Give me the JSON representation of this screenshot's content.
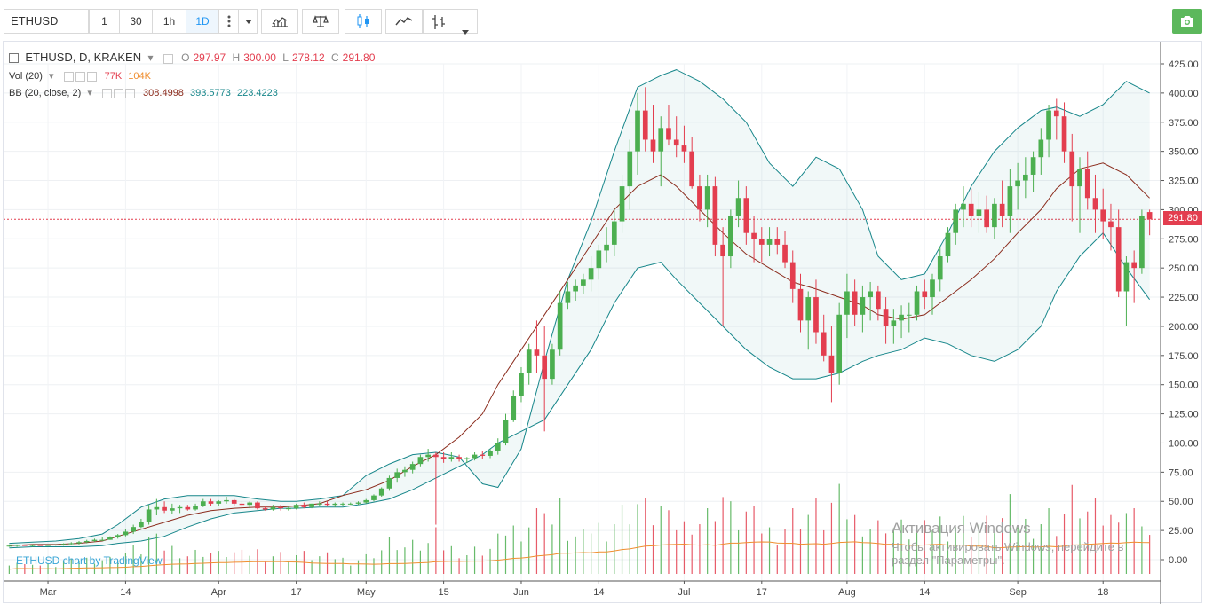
{
  "toolbar": {
    "symbol": "ETHUSD",
    "timeframes": [
      {
        "label": "1",
        "active": false
      },
      {
        "label": "30",
        "active": false
      },
      {
        "label": "1h",
        "active": false
      },
      {
        "label": "1D",
        "active": true
      }
    ],
    "icons": [
      "more-vertical-icon",
      "dropdown-icon",
      "indicators-icon",
      "compare-icon",
      "candles-icon",
      "line-chart-icon",
      "bar-style-icon",
      "dropdown-icon",
      "camera-icon"
    ]
  },
  "legend": {
    "title": "ETHUSD, D, KRAKEN",
    "o_label": "O",
    "o_value": "297.97",
    "h_label": "H",
    "h_value": "300.00",
    "l_label": "L",
    "l_value": "278.12",
    "c_label": "C",
    "c_value": "291.80",
    "vol_label": "Vol (20)",
    "vol_value1": "77K",
    "vol_value2": "104K",
    "bb_label": "BB (20, close, 2)",
    "bb_mid": "308.4998",
    "bb_upper": "393.5773",
    "bb_lower": "223.4223"
  },
  "watermark": "ETHUSD chart by TradingView",
  "windows_watermark": {
    "line1": "Активация Windows",
    "line2": "Чтобы активировать Windows, перейдите в",
    "line3": "раздел \"Параметры\"."
  },
  "current_price_tag": "291.80",
  "colors": {
    "up": "#4caf50",
    "down": "#e33e4f",
    "bb_band": "#16868a",
    "bb_mid": "#8b2c1d",
    "vol_ma": "#ef8e2f"
  },
  "chart_data": {
    "type": "candlestick",
    "y_axis_labels": [
      "425.00",
      "400.00",
      "375.00",
      "350.00",
      "325.00",
      "300.00",
      "275.00",
      "250.00",
      "225.00",
      "200.00",
      "175.00",
      "150.00",
      "125.00",
      "100.00",
      "75.00",
      "50.00",
      "25.00",
      "0.00"
    ],
    "ylim": [
      0,
      425
    ],
    "x_axis_labels": [
      "Mar",
      "14",
      "Apr",
      "17",
      "May",
      "15",
      "Jun",
      "14",
      "Jul",
      "17",
      "Aug",
      "14",
      "Sep",
      "18"
    ],
    "candles": [
      [
        12,
        13,
        11,
        12
      ],
      [
        12,
        13,
        11,
        12.5
      ],
      [
        12.5,
        13,
        12,
        12
      ],
      [
        12,
        13,
        11,
        12.5
      ],
      [
        12.5,
        13,
        12,
        12
      ],
      [
        12,
        13,
        12,
        12.5
      ],
      [
        12.5,
        13,
        12,
        13
      ],
      [
        13,
        14,
        12,
        13.5
      ],
      [
        13.5,
        15,
        13,
        14
      ],
      [
        14,
        16,
        13,
        15
      ],
      [
        15,
        17,
        14,
        16
      ],
      [
        16,
        18,
        15,
        17
      ],
      [
        17,
        19,
        16,
        17
      ],
      [
        17,
        20,
        17,
        19
      ],
      [
        19,
        22,
        18,
        21
      ],
      [
        21,
        26,
        20,
        24
      ],
      [
        24,
        30,
        22,
        28
      ],
      [
        28,
        35,
        27,
        32
      ],
      [
        32,
        47,
        30,
        43
      ],
      [
        43,
        52,
        38,
        45
      ],
      [
        45,
        50,
        40,
        42
      ],
      [
        42,
        48,
        39,
        44
      ],
      [
        44,
        47,
        40,
        45
      ],
      [
        45,
        47,
        42,
        43
      ],
      [
        43,
        48,
        42,
        46
      ],
      [
        46,
        52,
        45,
        50
      ],
      [
        50,
        52,
        46,
        48
      ],
      [
        48,
        51,
        46,
        50
      ],
      [
        50,
        54,
        48,
        51
      ],
      [
        51,
        52,
        46,
        48
      ],
      [
        48,
        50,
        45,
        47
      ],
      [
        47,
        50,
        44,
        49
      ],
      [
        49,
        50,
        43,
        44
      ],
      [
        44,
        46,
        42,
        43
      ],
      [
        43,
        47,
        42,
        45
      ],
      [
        45,
        47,
        42,
        44
      ],
      [
        44,
        46,
        42,
        44
      ],
      [
        44,
        48,
        43,
        47
      ],
      [
        47,
        49,
        44,
        45
      ],
      [
        45,
        48,
        44,
        48
      ],
      [
        48,
        50,
        46,
        48
      ],
      [
        48,
        50,
        46,
        47
      ],
      [
        47,
        49,
        45,
        48
      ],
      [
        48,
        49,
        46,
        48
      ],
      [
        48,
        49,
        47,
        48
      ],
      [
        48,
        50,
        47,
        49
      ],
      [
        49,
        52,
        48,
        51
      ],
      [
        51,
        56,
        50,
        55
      ],
      [
        55,
        62,
        54,
        61
      ],
      [
        61,
        72,
        59,
        70
      ],
      [
        70,
        78,
        66,
        75
      ],
      [
        75,
        80,
        71,
        77
      ],
      [
        77,
        84,
        74,
        82
      ],
      [
        82,
        90,
        80,
        88
      ],
      [
        88,
        95,
        84,
        90
      ],
      [
        90,
        92,
        30,
        88
      ],
      [
        88,
        92,
        83,
        86
      ],
      [
        86,
        92,
        84,
        88
      ],
      [
        88,
        90,
        84,
        86
      ],
      [
        86,
        88,
        83,
        87
      ],
      [
        87,
        92,
        85,
        90
      ],
      [
        90,
        93,
        86,
        89
      ],
      [
        89,
        95,
        87,
        93
      ],
      [
        93,
        104,
        90,
        100
      ],
      [
        100,
        125,
        98,
        120
      ],
      [
        120,
        145,
        118,
        140
      ],
      [
        140,
        165,
        135,
        160
      ],
      [
        160,
        185,
        150,
        180
      ],
      [
        180,
        205,
        160,
        175
      ],
      [
        175,
        200,
        110,
        155
      ],
      [
        155,
        185,
        150,
        180
      ],
      [
        180,
        230,
        175,
        220
      ],
      [
        220,
        238,
        215,
        230
      ],
      [
        230,
        240,
        222,
        235
      ],
      [
        235,
        245,
        228,
        240
      ],
      [
        240,
        260,
        230,
        250
      ],
      [
        250,
        270,
        240,
        265
      ],
      [
        265,
        285,
        255,
        270
      ],
      [
        270,
        300,
        260,
        290
      ],
      [
        290,
        330,
        280,
        320
      ],
      [
        320,
        360,
        300,
        350
      ],
      [
        350,
        400,
        330,
        385
      ],
      [
        385,
        405,
        350,
        360
      ],
      [
        360,
        390,
        340,
        350
      ],
      [
        350,
        380,
        320,
        370
      ],
      [
        370,
        390,
        355,
        360
      ],
      [
        360,
        380,
        345,
        355
      ],
      [
        355,
        372,
        340,
        350
      ],
      [
        350,
        362,
        318,
        320
      ],
      [
        320,
        330,
        290,
        300
      ],
      [
        300,
        330,
        285,
        320
      ],
      [
        320,
        328,
        260,
        270
      ],
      [
        270,
        285,
        200,
        260
      ],
      [
        260,
        300,
        250,
        295
      ],
      [
        295,
        325,
        285,
        310
      ],
      [
        310,
        320,
        270,
        280
      ],
      [
        280,
        295,
        255,
        275
      ],
      [
        275,
        285,
        255,
        270
      ],
      [
        270,
        285,
        260,
        275
      ],
      [
        275,
        285,
        262,
        270
      ],
      [
        270,
        282,
        250,
        255
      ],
      [
        255,
        265,
        220,
        232
      ],
      [
        232,
        245,
        195,
        205
      ],
      [
        205,
        230,
        180,
        225
      ],
      [
        225,
        240,
        185,
        195
      ],
      [
        195,
        210,
        170,
        175
      ],
      [
        175,
        200,
        135,
        160
      ],
      [
        160,
        220,
        150,
        210
      ],
      [
        210,
        245,
        190,
        230
      ],
      [
        230,
        240,
        200,
        210
      ],
      [
        210,
        235,
        195,
        225
      ],
      [
        225,
        238,
        205,
        230
      ],
      [
        230,
        235,
        205,
        215
      ],
      [
        215,
        225,
        185,
        200
      ],
      [
        200,
        215,
        185,
        205
      ],
      [
        205,
        218,
        190,
        210
      ],
      [
        210,
        220,
        195,
        210
      ],
      [
        210,
        235,
        205,
        230
      ],
      [
        230,
        240,
        215,
        225
      ],
      [
        225,
        245,
        210,
        240
      ],
      [
        240,
        268,
        230,
        260
      ],
      [
        260,
        285,
        255,
        280
      ],
      [
        280,
        305,
        270,
        300
      ],
      [
        300,
        320,
        285,
        305
      ],
      [
        305,
        318,
        285,
        295
      ],
      [
        295,
        315,
        280,
        300
      ],
      [
        300,
        312,
        280,
        285
      ],
      [
        285,
        310,
        275,
        305
      ],
      [
        305,
        325,
        285,
        295
      ],
      [
        295,
        335,
        280,
        320
      ],
      [
        320,
        340,
        300,
        325
      ],
      [
        325,
        345,
        310,
        330
      ],
      [
        330,
        350,
        315,
        345
      ],
      [
        345,
        370,
        330,
        360
      ],
      [
        360,
        390,
        345,
        385
      ],
      [
        385,
        395,
        360,
        380
      ],
      [
        380,
        392,
        340,
        350
      ],
      [
        350,
        365,
        290,
        320
      ],
      [
        320,
        345,
        280,
        335
      ],
      [
        335,
        350,
        300,
        310
      ],
      [
        310,
        330,
        280,
        300
      ],
      [
        300,
        318,
        275,
        290
      ],
      [
        290,
        305,
        265,
        285
      ],
      [
        285,
        300,
        225,
        230
      ],
      [
        230,
        260,
        200,
        255
      ],
      [
        255,
        265,
        220,
        250
      ],
      [
        250,
        300,
        245,
        295
      ],
      [
        297.97,
        300,
        278.12,
        291.8
      ]
    ],
    "bb_upper": [
      14,
      15,
      16,
      18,
      22,
      30,
      45,
      52,
      55,
      55,
      55,
      52,
      50,
      50,
      52,
      55,
      72,
      82,
      90,
      92,
      88,
      65,
      62,
      95,
      170,
      240,
      290,
      350,
      405,
      415,
      420,
      410,
      395,
      375,
      340,
      320,
      345,
      335,
      300,
      260,
      240,
      245,
      280,
      320,
      350,
      370,
      385,
      388,
      380,
      390,
      410,
      400
    ],
    "bb_middle": [
      12,
      13,
      13,
      14,
      16,
      20,
      26,
      32,
      38,
      42,
      44,
      45,
      45,
      46,
      48,
      55,
      60,
      68,
      80,
      90,
      105,
      125,
      150,
      180,
      210,
      240,
      270,
      300,
      320,
      330,
      320,
      300,
      280,
      262,
      250,
      238,
      232,
      225,
      218,
      210,
      206,
      210,
      225,
      240,
      258,
      280,
      300,
      318,
      335,
      340,
      330,
      310
    ],
    "bb_lower": [
      10,
      11,
      11,
      11,
      12,
      14,
      16,
      20,
      28,
      35,
      40,
      42,
      44,
      44,
      45,
      45,
      48,
      52,
      60,
      70,
      80,
      90,
      100,
      110,
      120,
      150,
      180,
      220,
      250,
      255,
      240,
      220,
      200,
      180,
      165,
      155,
      155,
      160,
      170,
      175,
      180,
      190,
      185,
      175,
      170,
      180,
      200,
      230,
      260,
      280,
      250,
      223
    ],
    "volume_ma_note": "Vol (20) moving average line",
    "current_price": 291.8
  }
}
